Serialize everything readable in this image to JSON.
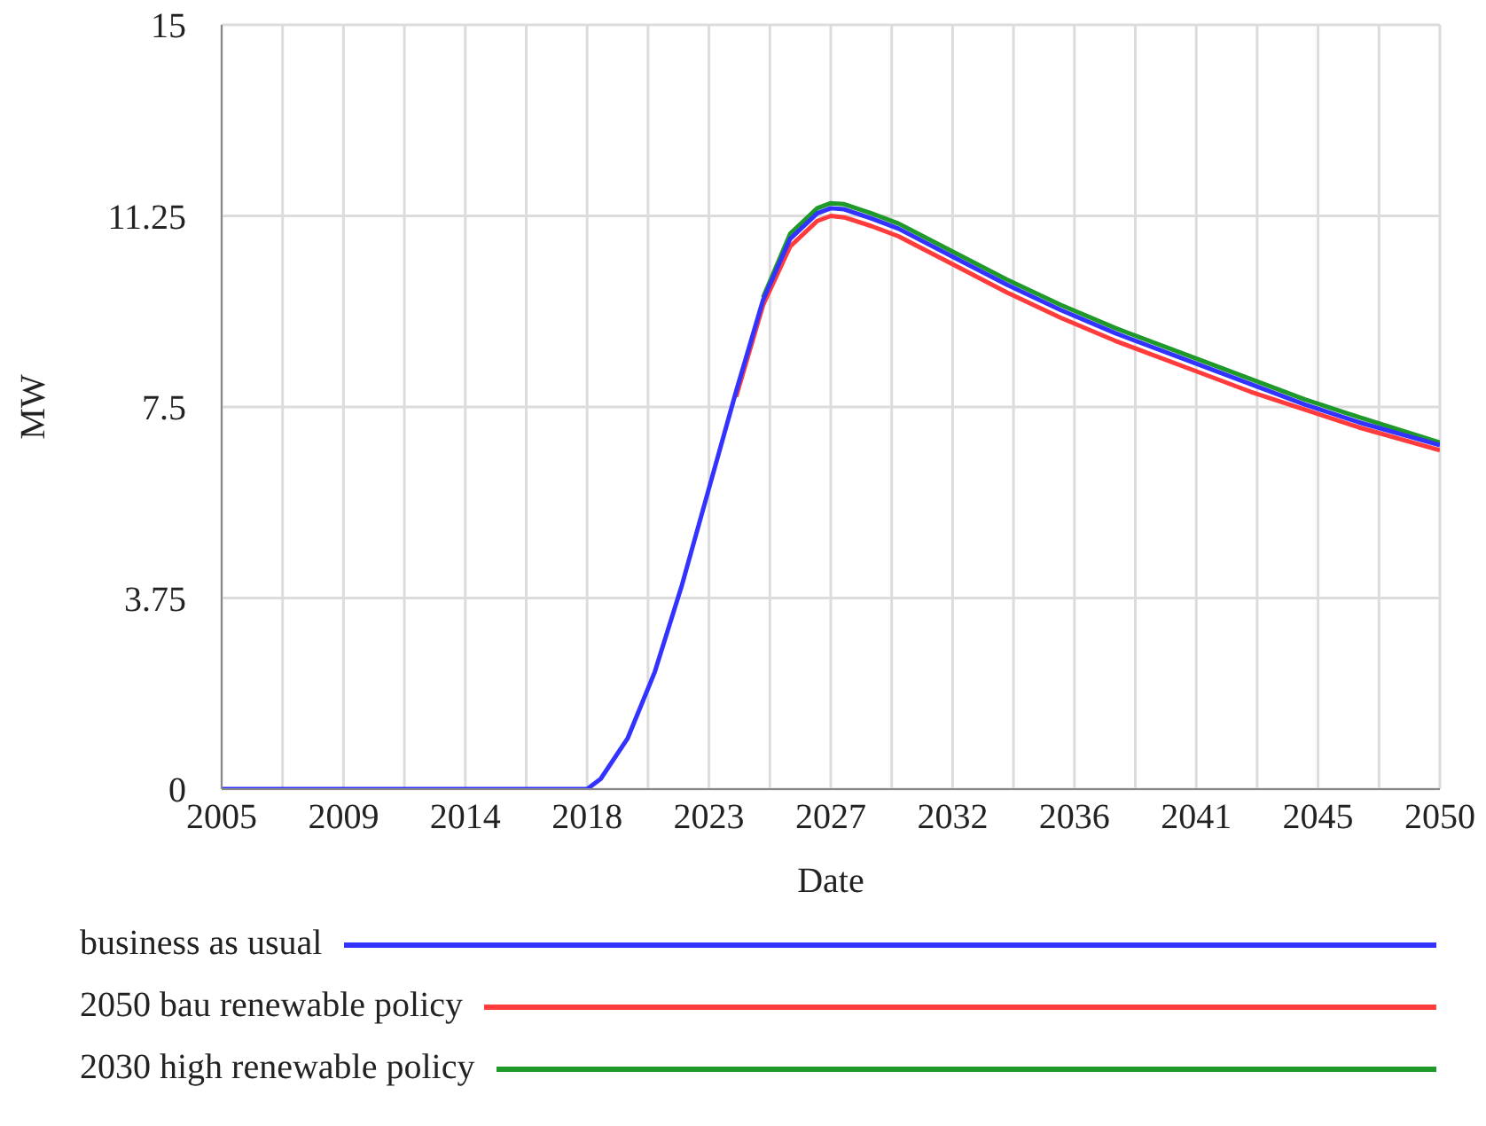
{
  "chart_data": {
    "type": "line",
    "xlabel": "Date",
    "ylabel": "MW",
    "x": [
      2005,
      2010,
      2015,
      2018,
      2018.5,
      2019,
      2020,
      2021,
      2022,
      2023,
      2024,
      2025,
      2026,
      2027,
      2027.5,
      2028,
      2029,
      2030,
      2032,
      2034,
      2036,
      2038,
      2041,
      2043,
      2045,
      2047,
      2050
    ],
    "series": [
      {
        "name": "business as usual",
        "color": "#3333ff",
        "values": [
          0,
          0,
          0,
          0,
          0,
          0.2,
          1.0,
          2.3,
          4.0,
          5.9,
          7.8,
          9.6,
          10.8,
          11.3,
          11.4,
          11.38,
          11.2,
          11.0,
          10.45,
          9.9,
          9.4,
          8.95,
          8.35,
          7.95,
          7.55,
          7.2,
          6.75
        ]
      },
      {
        "name": "2050 bau renewable policy",
        "color": "#ff3b3b",
        "values": [
          null,
          null,
          null,
          null,
          null,
          null,
          null,
          null,
          null,
          null,
          7.7,
          9.5,
          10.65,
          11.15,
          11.25,
          11.22,
          11.05,
          10.85,
          10.3,
          9.75,
          9.25,
          8.8,
          8.2,
          7.8,
          7.45,
          7.1,
          6.65
        ]
      },
      {
        "name": "2030 high renewable policy",
        "color": "#1f9a2a",
        "values": [
          null,
          null,
          null,
          null,
          null,
          null,
          null,
          null,
          null,
          null,
          null,
          9.65,
          10.9,
          11.4,
          11.5,
          11.48,
          11.3,
          11.1,
          10.55,
          10.0,
          9.5,
          9.05,
          8.45,
          8.05,
          7.65,
          7.3,
          6.8
        ]
      }
    ],
    "xlim": [
      2005,
      2050
    ],
    "xticks": [
      2005,
      {
        "value": 2007.25,
        "label": null
      },
      {
        "value": 2009.5,
        "label": "2009"
      },
      {
        "value": 2011.75,
        "label": null
      },
      2014,
      {
        "value": 2016.25,
        "label": null
      },
      {
        "value": 2018.5,
        "label": "2018"
      },
      {
        "value": 2020.75,
        "label": null
      },
      2023,
      {
        "value": 2025.25,
        "label": null
      },
      {
        "value": 2027.5,
        "label": "2027"
      },
      {
        "value": 2029.75,
        "label": null
      },
      2032,
      {
        "value": 2034.25,
        "label": null
      },
      {
        "value": 2036.5,
        "label": "2036"
      },
      {
        "value": 2038.75,
        "label": null
      },
      2041,
      {
        "value": 2043.25,
        "label": null
      },
      {
        "value": 2045.5,
        "label": "2045"
      },
      {
        "value": 2047.75,
        "label": null
      },
      2050
    ],
    "ylim": [
      0,
      15
    ],
    "yticks": [
      0,
      3.75,
      7.5,
      11.25,
      15
    ],
    "grid": true,
    "legend": "bottom",
    "line_style": "solid"
  }
}
